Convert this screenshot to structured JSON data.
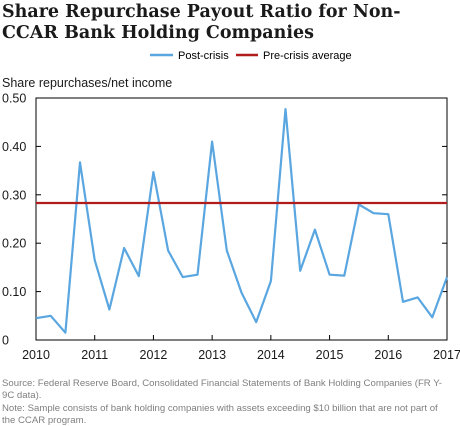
{
  "chart_data": {
    "type": "line",
    "title": "Share Repurchase Payout Ratio for Non-CCAR Bank Holding Companies",
    "ylabel": "Share repurchases/net income",
    "xlabel": "",
    "ylim": [
      0,
      0.5
    ],
    "xlim": [
      2010,
      2017
    ],
    "yticks": [
      "0",
      "0.10",
      "0.20",
      "0.30",
      "0.40",
      "0.50"
    ],
    "xticks": [
      "2010",
      "2011",
      "2012",
      "2013",
      "2014",
      "2015",
      "2016",
      "2017"
    ],
    "legend_position": "top",
    "grid": false,
    "series": [
      {
        "name": "Post-crisis",
        "color": "#5aa6e0",
        "x": [
          2010.0,
          2010.25,
          2010.5,
          2010.75,
          2011.0,
          2011.25,
          2011.5,
          2011.75,
          2012.0,
          2012.25,
          2012.5,
          2012.75,
          2013.0,
          2013.25,
          2013.5,
          2013.75,
          2014.0,
          2014.25,
          2014.5,
          2014.75,
          2015.0,
          2015.25,
          2015.5,
          2015.75,
          2016.0,
          2016.25,
          2016.5,
          2016.75,
          2017.0
        ],
        "y": [
          0.045,
          0.05,
          0.015,
          0.367,
          0.165,
          0.063,
          0.19,
          0.132,
          0.347,
          0.185,
          0.13,
          0.135,
          0.41,
          0.185,
          0.098,
          0.037,
          0.122,
          0.477,
          0.143,
          0.228,
          0.135,
          0.133,
          0.28,
          0.262,
          0.26,
          0.079,
          0.088,
          0.047,
          0.13
        ]
      },
      {
        "name": "Pre-crisis average",
        "color": "#b01c1c",
        "x": [
          2010,
          2017
        ],
        "y": [
          0.283,
          0.283
        ]
      }
    ]
  },
  "source": "Source: Federal Reserve Board, Consolidated Financial Statements of Bank Holding Companies (FR Y-9C data).",
  "note": "Note: Sample consists of bank holding companies with assets exceeding $10 billion that are not part of the CCAR program."
}
